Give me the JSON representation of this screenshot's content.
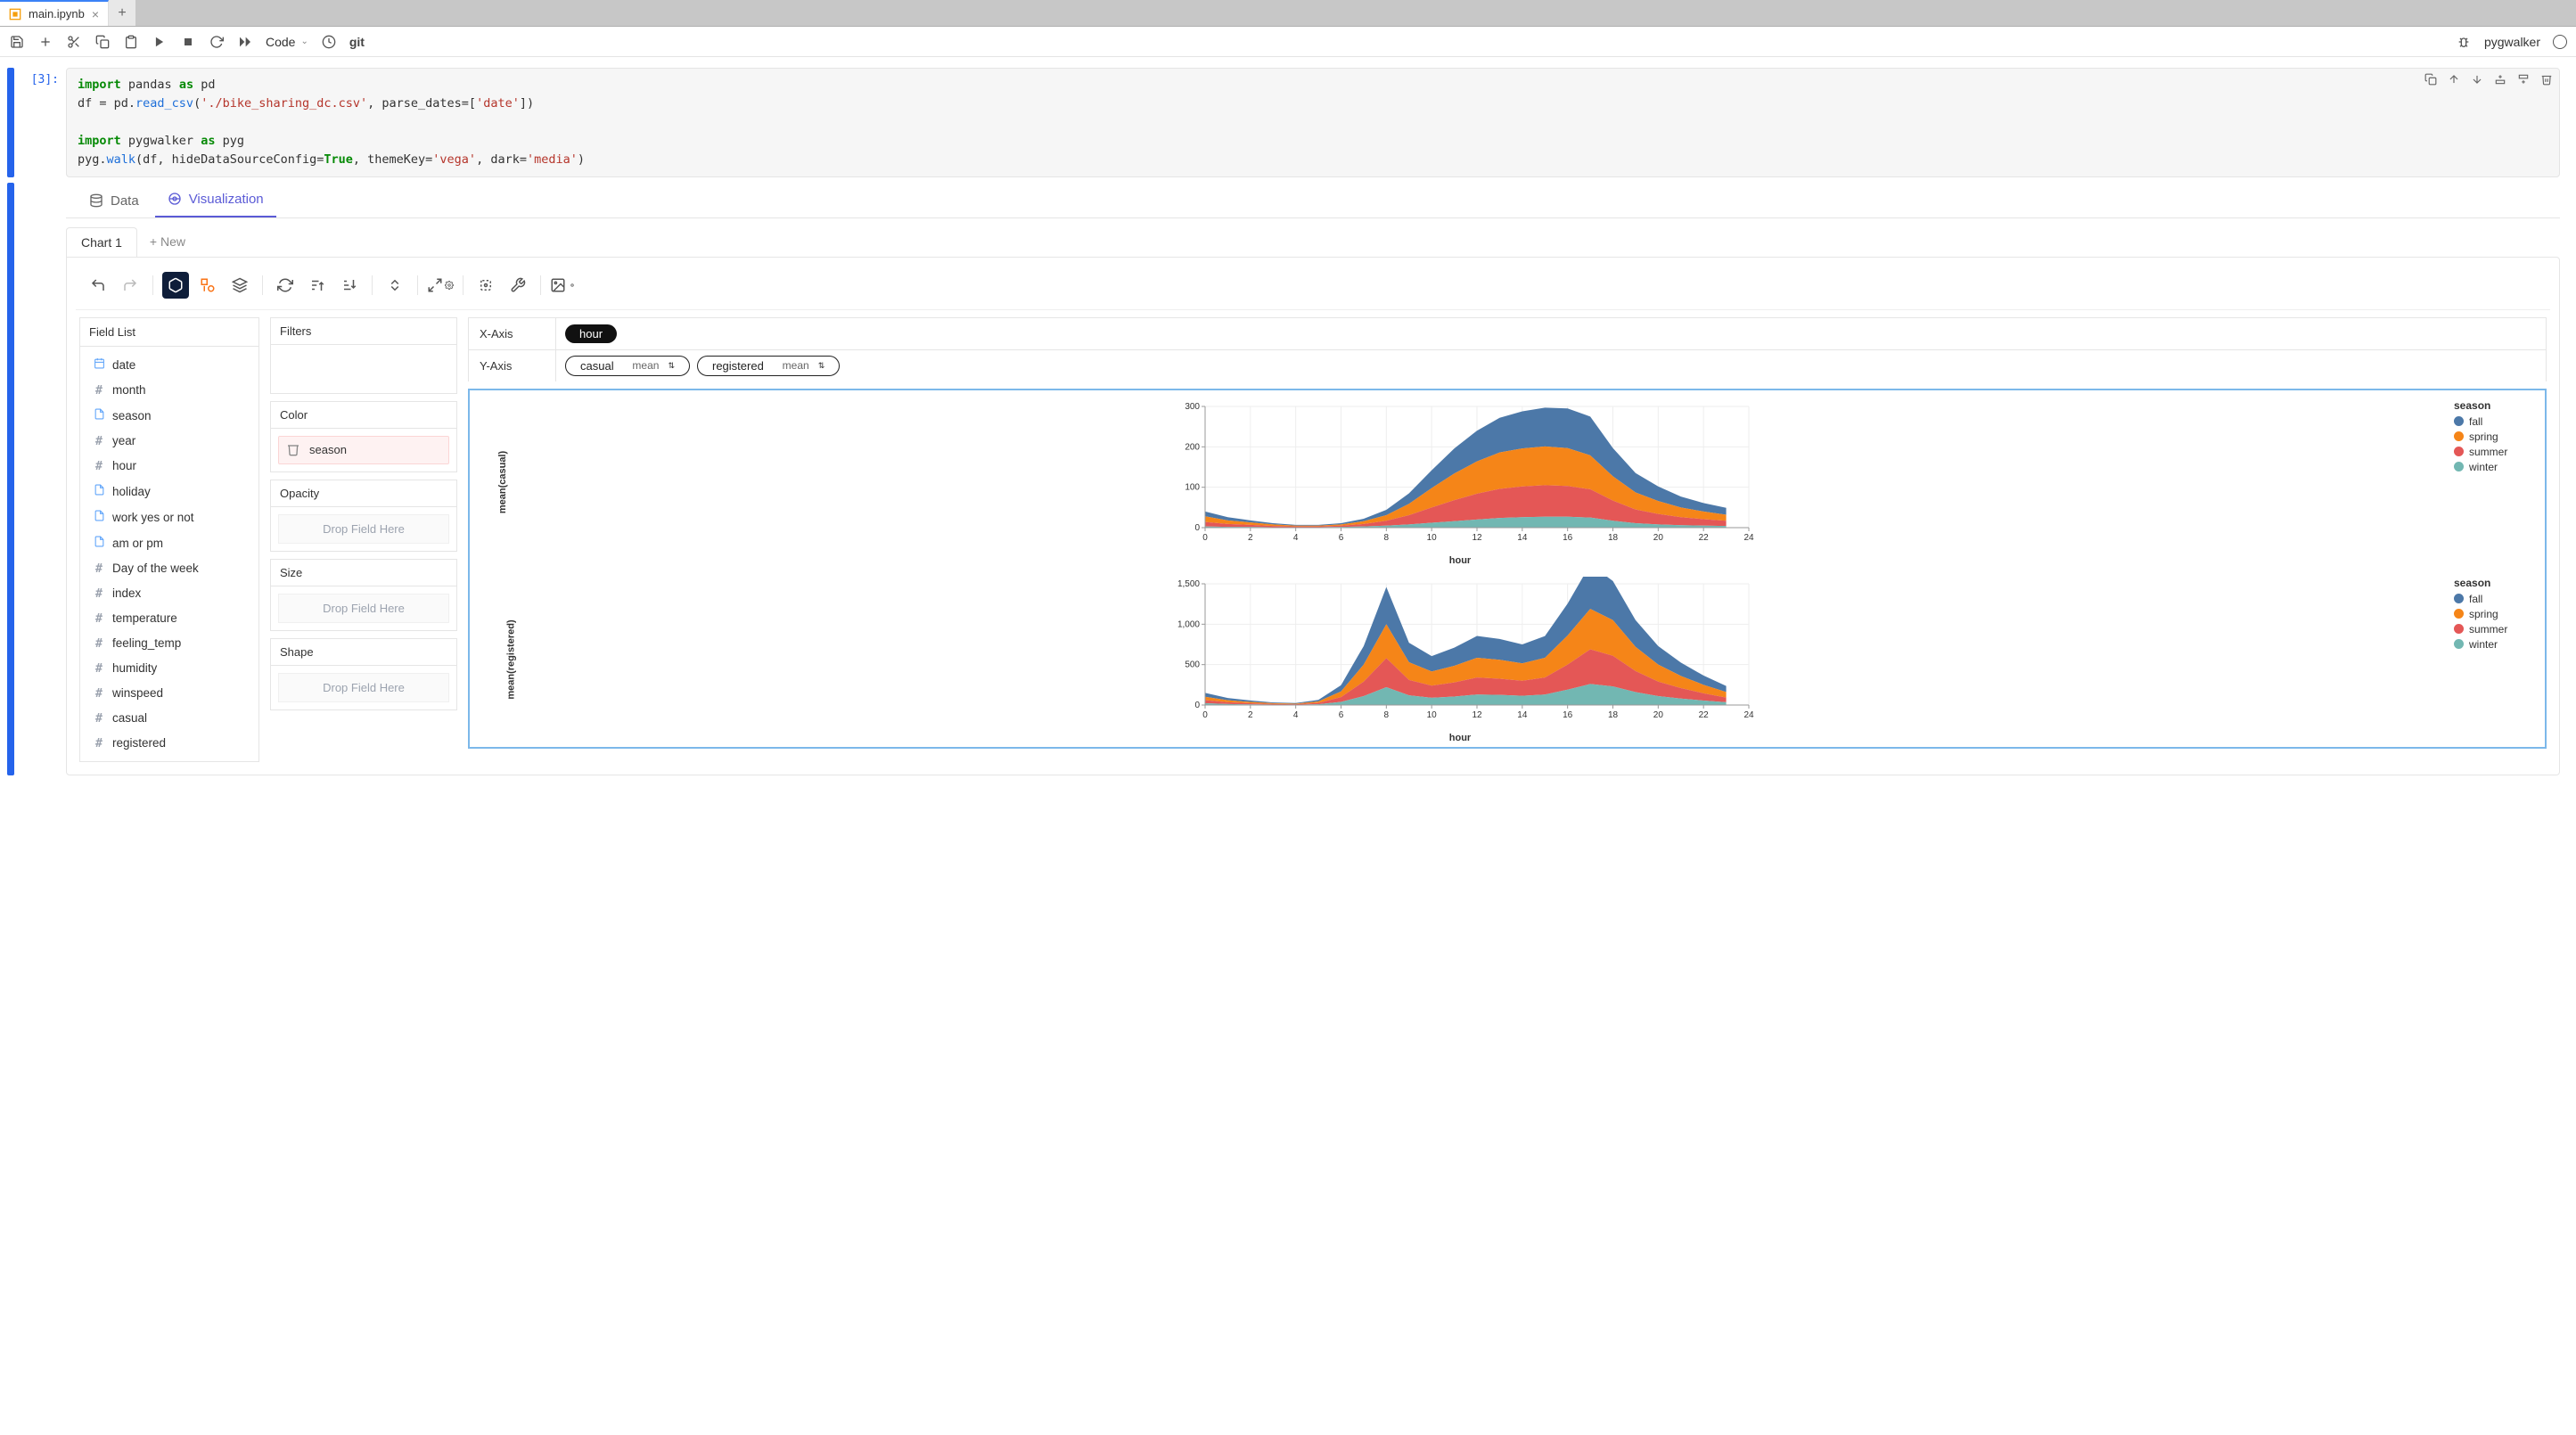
{
  "file_tab": {
    "name": "main.ipynb"
  },
  "toolbar": {
    "cell_type": "Code",
    "git": "git"
  },
  "kernel": {
    "name": "pygwalker"
  },
  "cell": {
    "prompt": "[3]:",
    "code_tokens": [
      {
        "t": "kw",
        "v": "import"
      },
      {
        "t": "",
        "v": " pandas "
      },
      {
        "t": "kw",
        "v": "as"
      },
      {
        "t": "",
        "v": " pd\n"
      },
      {
        "t": "",
        "v": "df = pd."
      },
      {
        "t": "fn",
        "v": "read_csv"
      },
      {
        "t": "",
        "v": "("
      },
      {
        "t": "str",
        "v": "'./bike_sharing_dc.csv'"
      },
      {
        "t": "",
        "v": ", parse_dates=["
      },
      {
        "t": "str",
        "v": "'date'"
      },
      {
        "t": "",
        "v": "])\n\n"
      },
      {
        "t": "kw",
        "v": "import"
      },
      {
        "t": "",
        "v": " pygwalker "
      },
      {
        "t": "kw",
        "v": "as"
      },
      {
        "t": "",
        "v": " pyg\npyg."
      },
      {
        "t": "fn",
        "v": "walk"
      },
      {
        "t": "",
        "v": "(df, hideDataSourceConfig="
      },
      {
        "t": "kw",
        "v": "True"
      },
      {
        "t": "",
        "v": ", themeKey="
      },
      {
        "t": "str",
        "v": "'vega'"
      },
      {
        "t": "",
        "v": ", dark="
      },
      {
        "t": "str",
        "v": "'media'"
      },
      {
        "t": "",
        "v": ")"
      }
    ]
  },
  "pg_tabs": {
    "data": "Data",
    "viz": "Visualization"
  },
  "chart_tabs": {
    "current": "Chart 1",
    "new": "+ New"
  },
  "field_list": {
    "title": "Field List",
    "items": [
      {
        "icon": "cal",
        "label": "date"
      },
      {
        "icon": "hash",
        "label": "month"
      },
      {
        "icon": "doc",
        "label": "season"
      },
      {
        "icon": "hash",
        "label": "year"
      },
      {
        "icon": "hash",
        "label": "hour"
      },
      {
        "icon": "doc",
        "label": "holiday"
      },
      {
        "icon": "doc",
        "label": "work yes or not"
      },
      {
        "icon": "doc",
        "label": "am or pm"
      },
      {
        "icon": "hash",
        "label": "Day of the week"
      },
      {
        "icon": "hash",
        "label": "index"
      },
      {
        "icon": "hash",
        "label": "temperature"
      },
      {
        "icon": "hash",
        "label": "feeling_temp"
      },
      {
        "icon": "hash",
        "label": "humidity"
      },
      {
        "icon": "hash",
        "label": "winspeed"
      },
      {
        "icon": "hash",
        "label": "casual"
      },
      {
        "icon": "hash",
        "label": "registered"
      }
    ]
  },
  "shelves": {
    "filters": {
      "title": "Filters"
    },
    "color": {
      "title": "Color",
      "field": "season"
    },
    "opacity": {
      "title": "Opacity",
      "placeholder": "Drop Field Here"
    },
    "size": {
      "title": "Size",
      "placeholder": "Drop Field Here"
    },
    "shape": {
      "title": "Shape",
      "placeholder": "Drop Field Here"
    }
  },
  "axes": {
    "x": {
      "label": "X-Axis",
      "pills": [
        {
          "name": "hour",
          "style": "solid"
        }
      ]
    },
    "y": {
      "label": "Y-Axis",
      "pills": [
        {
          "name": "casual",
          "agg": "mean",
          "style": "outline"
        },
        {
          "name": "registered",
          "agg": "mean",
          "style": "outline"
        }
      ]
    }
  },
  "legend": {
    "title": "season",
    "items": [
      {
        "label": "fall",
        "color": "#4c78a8"
      },
      {
        "label": "spring",
        "color": "#f58518"
      },
      {
        "label": "summer",
        "color": "#e45756"
      },
      {
        "label": "winter",
        "color": "#72b7b2"
      }
    ]
  },
  "colors": {
    "fall": "#4c78a8",
    "spring": "#f58518",
    "summer": "#e45756",
    "winter": "#72b7b2",
    "grid": "#eeeeee",
    "axis": "#999999",
    "viz_border": "#7cb8ea"
  },
  "chart1": {
    "type": "area",
    "ylabel": "mean(casual)",
    "xlabel": "hour",
    "xlim": [
      0,
      24
    ],
    "xtick_step": 2,
    "ylim": [
      0,
      300
    ],
    "ytick_step": 100,
    "x": [
      0,
      1,
      2,
      3,
      4,
      5,
      6,
      7,
      8,
      9,
      10,
      11,
      12,
      13,
      14,
      15,
      16,
      17,
      18,
      19,
      20,
      21,
      22,
      23
    ],
    "series_order": [
      "winter",
      "summer",
      "spring",
      "fall"
    ],
    "series": {
      "winter": [
        3,
        2,
        2,
        1,
        1,
        1,
        2,
        3,
        5,
        8,
        12,
        16,
        20,
        24,
        26,
        27,
        27,
        25,
        17,
        11,
        8,
        6,
        5,
        4
      ],
      "summer": [
        11,
        7,
        5,
        3,
        2,
        2,
        3,
        6,
        12,
        23,
        38,
        52,
        64,
        72,
        76,
        78,
        76,
        70,
        50,
        34,
        26,
        20,
        16,
        13
      ],
      "spring": [
        14,
        9,
        6,
        4,
        2,
        2,
        3,
        7,
        14,
        28,
        48,
        66,
        80,
        90,
        94,
        96,
        94,
        84,
        60,
        42,
        32,
        24,
        19,
        15
      ],
      "fall": [
        12,
        8,
        5,
        3,
        2,
        2,
        3,
        6,
        13,
        26,
        44,
        62,
        76,
        86,
        92,
        96,
        98,
        96,
        70,
        48,
        36,
        27,
        21,
        17
      ]
    }
  },
  "chart2": {
    "type": "area",
    "ylabel": "mean(registered)",
    "xlabel": "hour",
    "xlim": [
      0,
      24
    ],
    "xtick_step": 2,
    "ylim": [
      0,
      1500
    ],
    "ytick_step": 500,
    "x": [
      0,
      1,
      2,
      3,
      4,
      5,
      6,
      7,
      8,
      9,
      10,
      11,
      12,
      13,
      14,
      15,
      16,
      17,
      18,
      19,
      20,
      21,
      22,
      23
    ],
    "series_order": [
      "winter",
      "summer",
      "spring",
      "fall"
    ],
    "series": {
      "winter": [
        22,
        12,
        8,
        5,
        4,
        10,
        38,
        110,
        220,
        120,
        90,
        105,
        130,
        125,
        115,
        130,
        190,
        260,
        230,
        160,
        110,
        80,
        55,
        35
      ],
      "summer": [
        38,
        22,
        14,
        8,
        6,
        16,
        60,
        180,
        360,
        190,
        150,
        175,
        210,
        200,
        185,
        210,
        310,
        430,
        380,
        260,
        180,
        130,
        90,
        58
      ],
      "spring": [
        42,
        25,
        16,
        9,
        7,
        18,
        70,
        210,
        420,
        220,
        175,
        205,
        245,
        235,
        215,
        245,
        360,
        500,
        440,
        300,
        210,
        150,
        105,
        68
      ],
      "fall": [
        48,
        28,
        18,
        10,
        8,
        20,
        78,
        230,
        460,
        240,
        190,
        225,
        270,
        258,
        235,
        268,
        395,
        550,
        485,
        330,
        230,
        165,
        115,
        75
      ]
    }
  }
}
